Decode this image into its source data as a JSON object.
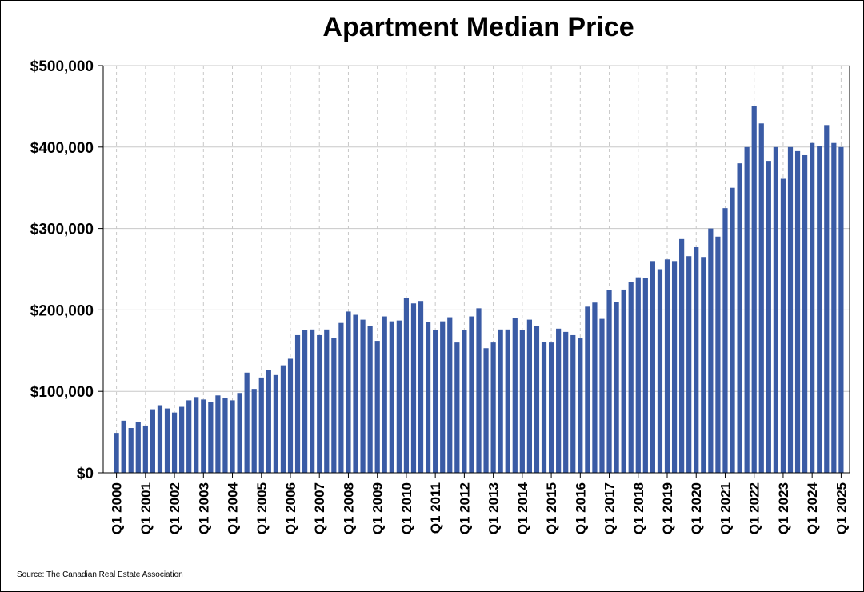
{
  "colors": {
    "bar": "#3a5ba5",
    "grid": "#c8c8c8",
    "axis": "#000000"
  },
  "chart_data": {
    "type": "bar",
    "title": "Apartment Median Price",
    "xlabel": "",
    "ylabel": "",
    "ylim": [
      0,
      500000
    ],
    "yticks": [
      0,
      100000,
      200000,
      300000,
      400000,
      500000
    ],
    "ytick_labels": [
      "$0",
      "$100,000",
      "$200,000",
      "$300,000",
      "$400,000",
      "$500,000"
    ],
    "xtick_labels": [
      "Q1 2000",
      "Q1 2001",
      "Q1 2002",
      "Q1 2003",
      "Q1 2004",
      "Q1 2005",
      "Q1 2006",
      "Q1 2007",
      "Q1 2008",
      "Q1 2009",
      "Q1 2010",
      "Q1 2011",
      "Q1 2012",
      "Q1 2013",
      "Q1 2014",
      "Q1 2015",
      "Q1 2016",
      "Q1 2017",
      "Q1 2018",
      "Q1 2019",
      "Q1 2020",
      "Q1 2021",
      "Q1 2022",
      "Q1 2023",
      "Q1 2024",
      "Q1 2025"
    ],
    "grid": {
      "horizontal": "solid",
      "vertical": "dashed"
    },
    "legend": "none",
    "source": "Source: The Canadian Real Estate Association",
    "values": [
      49000,
      64000,
      55000,
      62000,
      58000,
      78000,
      83000,
      79000,
      74000,
      81000,
      89000,
      93000,
      90000,
      87000,
      95000,
      92000,
      89000,
      98000,
      123000,
      103000,
      117000,
      126000,
      120000,
      132000,
      140000,
      169000,
      175000,
      176000,
      169000,
      176000,
      166000,
      184000,
      198000,
      194000,
      188000,
      180000,
      162000,
      192000,
      186000,
      187000,
      215000,
      208000,
      211000,
      185000,
      175000,
      186000,
      191000,
      160000,
      175000,
      192000,
      202000,
      153000,
      160000,
      176000,
      176000,
      190000,
      175000,
      188000,
      180000,
      161000,
      160000,
      177000,
      173000,
      169000,
      165000,
      204000,
      209000,
      189000,
      224000,
      210000,
      225000,
      234000,
      240000,
      239000,
      260000,
      250000,
      262000,
      260000,
      287000,
      266000,
      277000,
      265000,
      300000,
      290000,
      325000,
      350000,
      380000,
      400000,
      450000,
      429000,
      383000,
      400000,
      361000,
      400000,
      395000,
      390000,
      405000,
      401000,
      427000,
      405000,
      400000
    ]
  }
}
